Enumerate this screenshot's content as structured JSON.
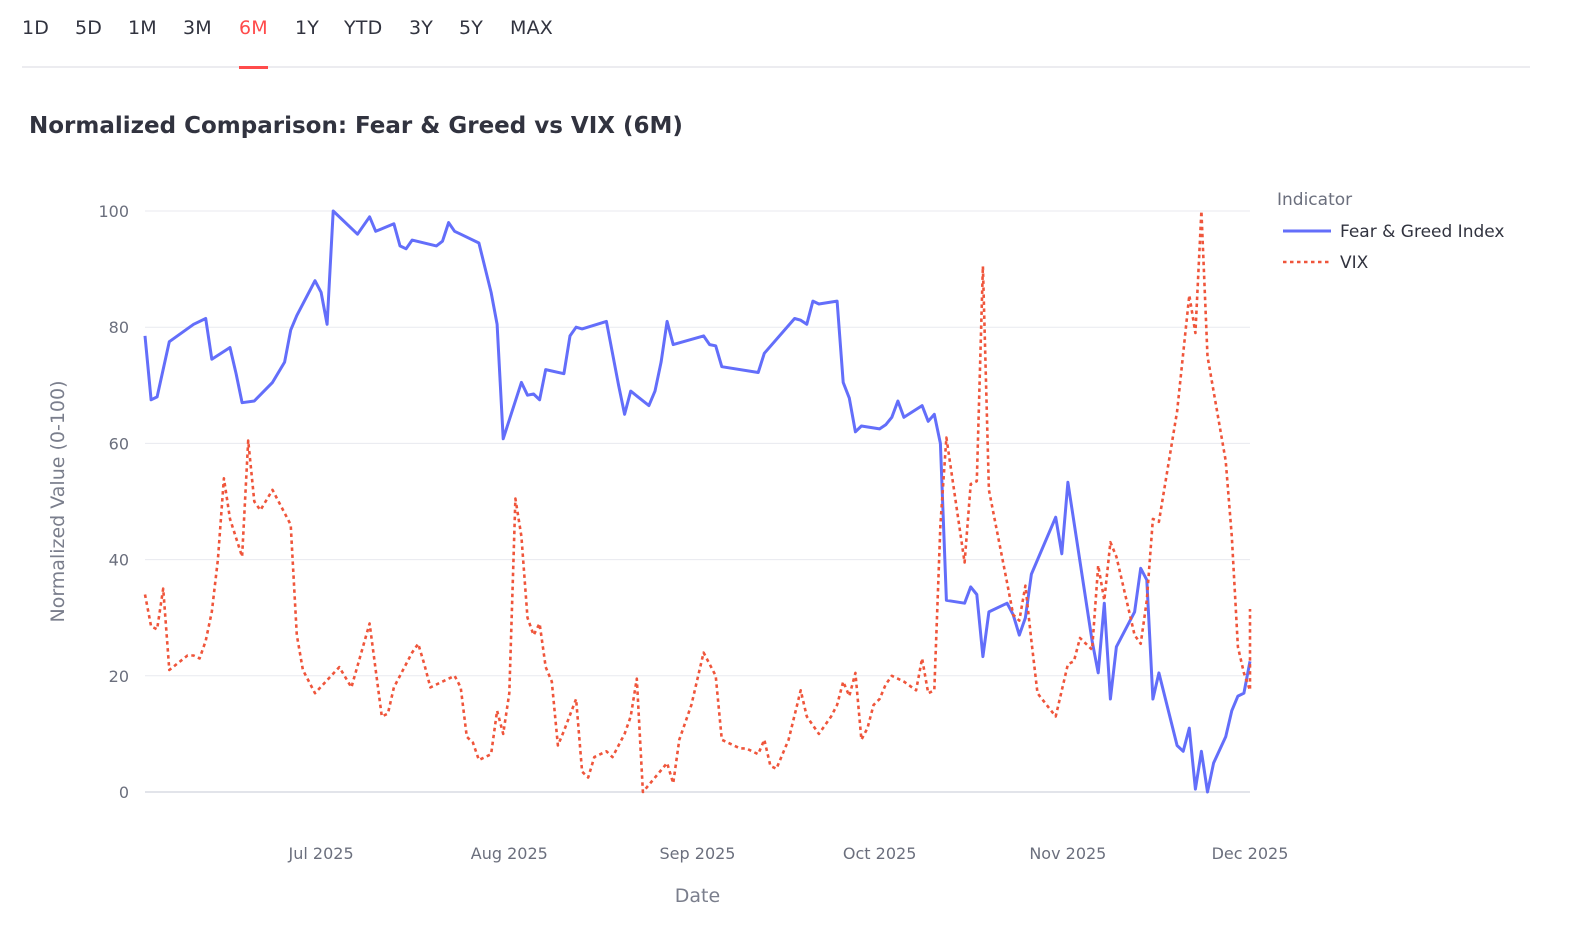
{
  "tabs": [
    {
      "label": "1D",
      "active": false
    },
    {
      "label": "5D",
      "active": false
    },
    {
      "label": "1M",
      "active": false
    },
    {
      "label": "3M",
      "active": false
    },
    {
      "label": "6M",
      "active": true
    },
    {
      "label": "1Y",
      "active": false
    },
    {
      "label": "YTD",
      "active": false
    },
    {
      "label": "3Y",
      "active": false
    },
    {
      "label": "5Y",
      "active": false
    },
    {
      "label": "MAX",
      "active": false
    }
  ],
  "colors": {
    "accent": "#ff4b4b",
    "fear_greed": "#636efa",
    "vix": "#ef553b"
  },
  "chart_data": {
    "type": "line",
    "title": "Normalized Comparison: Fear & Greed vs VIX (6M)",
    "xlabel": "Date",
    "ylabel": "Normalized Value (0-100)",
    "xlim": [
      "2025-06-02",
      "2025-12-01"
    ],
    "ylim": [
      0,
      100
    ],
    "yticks": [
      0,
      20,
      40,
      60,
      80,
      100
    ],
    "xticks": [
      {
        "date": "2025-07-01",
        "label": "Jul 2025"
      },
      {
        "date": "2025-08-01",
        "label": "Aug 2025"
      },
      {
        "date": "2025-09-01",
        "label": "Sep 2025"
      },
      {
        "date": "2025-10-01",
        "label": "Oct 2025"
      },
      {
        "date": "2025-11-01",
        "label": "Nov 2025"
      },
      {
        "date": "2025-12-01",
        "label": "Dec 2025"
      }
    ],
    "grid": true,
    "legend": {
      "title": "Indicator",
      "position": "top-right"
    },
    "series": [
      {
        "name": "Fear & Greed Index",
        "color": "#636efa",
        "dash": "solid",
        "points": [
          [
            "2025-06-02",
            78.5
          ],
          [
            "2025-06-03",
            67.5
          ],
          [
            "2025-06-04",
            68
          ],
          [
            "2025-06-06",
            77.5
          ],
          [
            "2025-06-10",
            80.5
          ],
          [
            "2025-06-12",
            81.5
          ],
          [
            "2025-06-13",
            74.5
          ],
          [
            "2025-06-16",
            76.5
          ],
          [
            "2025-06-17",
            72
          ],
          [
            "2025-06-18",
            67
          ],
          [
            "2025-06-20",
            67.3
          ],
          [
            "2025-06-23",
            70.5
          ],
          [
            "2025-06-25",
            74
          ],
          [
            "2025-06-26",
            79.5
          ],
          [
            "2025-06-27",
            82
          ],
          [
            "2025-06-30",
            88
          ],
          [
            "2025-07-01",
            86
          ],
          [
            "2025-07-02",
            80.5
          ],
          [
            "2025-07-03",
            100
          ],
          [
            "2025-07-07",
            96
          ],
          [
            "2025-07-09",
            99
          ],
          [
            "2025-07-10",
            96.5
          ],
          [
            "2025-07-13",
            97.8
          ],
          [
            "2025-07-14",
            94
          ],
          [
            "2025-07-15",
            93.5
          ],
          [
            "2025-07-16",
            95
          ],
          [
            "2025-07-20",
            94
          ],
          [
            "2025-07-21",
            94.8
          ],
          [
            "2025-07-22",
            98
          ],
          [
            "2025-07-23",
            96.5
          ],
          [
            "2025-07-24",
            96
          ],
          [
            "2025-07-27",
            94.5
          ],
          [
            "2025-07-29",
            86
          ],
          [
            "2025-07-30",
            80.5
          ],
          [
            "2025-07-31",
            60.8
          ],
          [
            "2025-08-03",
            70.5
          ],
          [
            "2025-08-04",
            68.3
          ],
          [
            "2025-08-05",
            68.5
          ],
          [
            "2025-08-06",
            67.5
          ],
          [
            "2025-08-07",
            72.7
          ],
          [
            "2025-08-10",
            72
          ],
          [
            "2025-08-11",
            78.5
          ],
          [
            "2025-08-12",
            80
          ],
          [
            "2025-08-13",
            79.7
          ],
          [
            "2025-08-17",
            81
          ],
          [
            "2025-08-19",
            70
          ],
          [
            "2025-08-20",
            65
          ],
          [
            "2025-08-21",
            69
          ],
          [
            "2025-08-24",
            66.5
          ],
          [
            "2025-08-25",
            69
          ],
          [
            "2025-08-26",
            74
          ],
          [
            "2025-08-27",
            81
          ],
          [
            "2025-08-28",
            77
          ],
          [
            "2025-09-02",
            78.5
          ],
          [
            "2025-09-03",
            77
          ],
          [
            "2025-09-04",
            76.8
          ],
          [
            "2025-09-05",
            73.2
          ],
          [
            "2025-09-11",
            72.2
          ],
          [
            "2025-09-12",
            75.5
          ],
          [
            "2025-09-17",
            81.5
          ],
          [
            "2025-09-18",
            81.2
          ],
          [
            "2025-09-19",
            80.5
          ],
          [
            "2025-09-20",
            84.5
          ],
          [
            "2025-09-21",
            84
          ],
          [
            "2025-09-24",
            84.5
          ],
          [
            "2025-09-25",
            70.5
          ],
          [
            "2025-09-26",
            67.8
          ],
          [
            "2025-09-27",
            62
          ],
          [
            "2025-09-28",
            63
          ],
          [
            "2025-10-01",
            62.5
          ],
          [
            "2025-10-02",
            63.2
          ],
          [
            "2025-10-03",
            64.5
          ],
          [
            "2025-10-04",
            67.3
          ],
          [
            "2025-10-05",
            64.5
          ],
          [
            "2025-10-08",
            66.5
          ],
          [
            "2025-10-09",
            63.8
          ],
          [
            "2025-10-10",
            65
          ],
          [
            "2025-10-11",
            60
          ],
          [
            "2025-10-12",
            33
          ],
          [
            "2025-10-15",
            32.5
          ],
          [
            "2025-10-16",
            35.3
          ],
          [
            "2025-10-17",
            34
          ],
          [
            "2025-10-18",
            23.3
          ],
          [
            "2025-10-19",
            31
          ],
          [
            "2025-10-22",
            32.5
          ],
          [
            "2025-10-23",
            30.5
          ],
          [
            "2025-10-24",
            27
          ],
          [
            "2025-10-25",
            30
          ],
          [
            "2025-10-26",
            37.5
          ],
          [
            "2025-10-30",
            47.3
          ],
          [
            "2025-10-31",
            41
          ],
          [
            "2025-11-01",
            53.3
          ],
          [
            "2025-11-05",
            26
          ],
          [
            "2025-11-06",
            20.5
          ],
          [
            "2025-11-07",
            32.5
          ],
          [
            "2025-11-08",
            16
          ],
          [
            "2025-11-09",
            25
          ],
          [
            "2025-11-12",
            31
          ],
          [
            "2025-11-13",
            38.5
          ],
          [
            "2025-11-14",
            36.5
          ],
          [
            "2025-11-15",
            16
          ],
          [
            "2025-11-16",
            20.5
          ],
          [
            "2025-11-19",
            8
          ],
          [
            "2025-11-20",
            7
          ],
          [
            "2025-11-21",
            11
          ],
          [
            "2025-11-22",
            0.5
          ],
          [
            "2025-11-23",
            7
          ],
          [
            "2025-11-24",
            0
          ],
          [
            "2025-11-25",
            5
          ],
          [
            "2025-11-27",
            9.5
          ],
          [
            "2025-11-28",
            14
          ],
          [
            "2025-11-29",
            16.5
          ],
          [
            "2025-11-30",
            17
          ],
          [
            "2025-12-01",
            22.5
          ],
          [
            "2025-12-06",
            22.5
          ]
        ]
      },
      {
        "name": "VIX",
        "color": "#ef553b",
        "dash": "dot",
        "points": [
          [
            "2025-06-02",
            34
          ],
          [
            "2025-06-03",
            28.5
          ],
          [
            "2025-06-04",
            28
          ],
          [
            "2025-06-05",
            35
          ],
          [
            "2025-06-06",
            21
          ],
          [
            "2025-06-09",
            23.5
          ],
          [
            "2025-06-10",
            23.5
          ],
          [
            "2025-06-11",
            23
          ],
          [
            "2025-06-12",
            26
          ],
          [
            "2025-06-13",
            31
          ],
          [
            "2025-06-14",
            40
          ],
          [
            "2025-06-15",
            54
          ],
          [
            "2025-06-16",
            47
          ],
          [
            "2025-06-18",
            40.5
          ],
          [
            "2025-06-19",
            60.5
          ],
          [
            "2025-06-20",
            50
          ],
          [
            "2025-06-21",
            48.5
          ],
          [
            "2025-06-23",
            52
          ],
          [
            "2025-06-26",
            46
          ],
          [
            "2025-06-27",
            27
          ],
          [
            "2025-06-28",
            21
          ],
          [
            "2025-06-30",
            17
          ],
          [
            "2025-07-04",
            21.5
          ],
          [
            "2025-07-06",
            18
          ],
          [
            "2025-07-09",
            29
          ],
          [
            "2025-07-11",
            13
          ],
          [
            "2025-07-12",
            13.5
          ],
          [
            "2025-07-13",
            18
          ],
          [
            "2025-07-16",
            24
          ],
          [
            "2025-07-17",
            25.5
          ],
          [
            "2025-07-18",
            22
          ],
          [
            "2025-07-19",
            18
          ],
          [
            "2025-07-20",
            18.5
          ],
          [
            "2025-07-22",
            19.5
          ],
          [
            "2025-07-23",
            20
          ],
          [
            "2025-07-24",
            18
          ],
          [
            "2025-07-25",
            9.5
          ],
          [
            "2025-07-26",
            8.5
          ],
          [
            "2025-07-27",
            5.5
          ],
          [
            "2025-07-29",
            6.5
          ],
          [
            "2025-07-30",
            14
          ],
          [
            "2025-07-31",
            10
          ],
          [
            "2025-08-01",
            17
          ],
          [
            "2025-08-02",
            50.5
          ],
          [
            "2025-08-03",
            44
          ],
          [
            "2025-08-04",
            30
          ],
          [
            "2025-08-05",
            27
          ],
          [
            "2025-08-06",
            29
          ],
          [
            "2025-08-07",
            21.5
          ],
          [
            "2025-08-08",
            19
          ],
          [
            "2025-08-09",
            8
          ],
          [
            "2025-08-10",
            10.5
          ],
          [
            "2025-08-12",
            16
          ],
          [
            "2025-08-13",
            3.5
          ],
          [
            "2025-08-14",
            2.5
          ],
          [
            "2025-08-15",
            6
          ],
          [
            "2025-08-17",
            7
          ],
          [
            "2025-08-18",
            6
          ],
          [
            "2025-08-20",
            10
          ],
          [
            "2025-08-21",
            13
          ],
          [
            "2025-08-22",
            19.5
          ],
          [
            "2025-08-23",
            0
          ],
          [
            "2025-08-27",
            5
          ],
          [
            "2025-08-28",
            1.5
          ],
          [
            "2025-08-29",
            9
          ],
          [
            "2025-08-31",
            15
          ],
          [
            "2025-09-02",
            24
          ],
          [
            "2025-09-04",
            20
          ],
          [
            "2025-09-05",
            9
          ],
          [
            "2025-09-08",
            7.5
          ],
          [
            "2025-09-09",
            7.5
          ],
          [
            "2025-09-11",
            6.5
          ],
          [
            "2025-09-12",
            9
          ],
          [
            "2025-09-13",
            4.5
          ],
          [
            "2025-09-14",
            4
          ],
          [
            "2025-09-16",
            9
          ],
          [
            "2025-09-18",
            17.5
          ],
          [
            "2025-09-19",
            13
          ],
          [
            "2025-09-21",
            10
          ],
          [
            "2025-09-23",
            13
          ],
          [
            "2025-09-24",
            15
          ],
          [
            "2025-09-25",
            19
          ],
          [
            "2025-09-26",
            16.5
          ],
          [
            "2025-09-27",
            20.5
          ],
          [
            "2025-09-28",
            9
          ],
          [
            "2025-09-29",
            11
          ],
          [
            "2025-09-30",
            15
          ],
          [
            "2025-10-01",
            16
          ],
          [
            "2025-10-02",
            18.5
          ],
          [
            "2025-10-03",
            20
          ],
          [
            "2025-10-05",
            19
          ],
          [
            "2025-10-07",
            17.5
          ],
          [
            "2025-10-08",
            23
          ],
          [
            "2025-10-09",
            17
          ],
          [
            "2025-10-10",
            17.5
          ],
          [
            "2025-10-11",
            46
          ],
          [
            "2025-10-12",
            61
          ],
          [
            "2025-10-15",
            39.5
          ],
          [
            "2025-10-16",
            53
          ],
          [
            "2025-10-17",
            53.5
          ],
          [
            "2025-10-18",
            90.5
          ],
          [
            "2025-10-19",
            52
          ],
          [
            "2025-10-22",
            36
          ],
          [
            "2025-10-23",
            30.5
          ],
          [
            "2025-10-24",
            29.5
          ],
          [
            "2025-10-25",
            35.5
          ],
          [
            "2025-10-26",
            26
          ],
          [
            "2025-10-27",
            17
          ],
          [
            "2025-10-30",
            13
          ],
          [
            "2025-11-01",
            22
          ],
          [
            "2025-11-02",
            22.5
          ],
          [
            "2025-11-03",
            26.5
          ],
          [
            "2025-11-05",
            24.5
          ],
          [
            "2025-11-06",
            39
          ],
          [
            "2025-11-07",
            33
          ],
          [
            "2025-11-08",
            43
          ],
          [
            "2025-11-09",
            40.5
          ],
          [
            "2025-11-12",
            27
          ],
          [
            "2025-11-13",
            25.5
          ],
          [
            "2025-11-14",
            33
          ],
          [
            "2025-11-15",
            47
          ],
          [
            "2025-11-16",
            46.5
          ],
          [
            "2025-11-19",
            65.5
          ],
          [
            "2025-11-21",
            85.5
          ],
          [
            "2025-11-22",
            79
          ],
          [
            "2025-11-23",
            100
          ],
          [
            "2025-11-24",
            75
          ],
          [
            "2025-11-27",
            57
          ],
          [
            "2025-11-28",
            44
          ],
          [
            "2025-11-29",
            25
          ],
          [
            "2025-11-30",
            20.5
          ],
          [
            "2025-12-01",
            17.5
          ],
          [
            "2025-12-06",
            31.5
          ]
        ]
      }
    ]
  }
}
